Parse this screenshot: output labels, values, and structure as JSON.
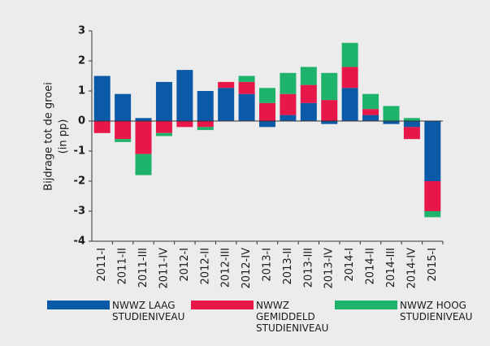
{
  "chart_data": {
    "type": "bar",
    "stacked": true,
    "ylabel": [
      "Bijdrage tot de groei",
      "(in pp)"
    ],
    "categories": [
      "2011-I",
      "2011-II",
      "2011-III",
      "2011-IV",
      "2012-I",
      "2012-II",
      "2012-III",
      "2012-IV",
      "2013-I",
      "2013-II",
      "2013-III",
      "2013-IV",
      "2014-I",
      "2014-II",
      "2014-III",
      "2014-IV",
      "2015-I"
    ],
    "series": [
      {
        "name": "NWWZ LAAG STUDIENIVEAU",
        "color": "#0b5aa8",
        "values": [
          1.5,
          0.9,
          0.1,
          1.3,
          1.7,
          1.0,
          1.1,
          0.9,
          -0.2,
          0.2,
          0.6,
          -0.1,
          1.1,
          0.2,
          -0.1,
          -0.2,
          -2.0
        ]
      },
      {
        "name": "NWWZ GEMIDDELD STUDIENIVEAU",
        "color": "#e8174a",
        "values": [
          -0.4,
          -0.6,
          -1.1,
          -0.4,
          -0.2,
          -0.2,
          0.2,
          0.4,
          0.6,
          0.7,
          0.6,
          0.7,
          0.7,
          0.2,
          0,
          -0.4,
          -1.0
        ]
      },
      {
        "name": "NWWZ HOOG STUDIENIVEAU",
        "color": "#1db36b",
        "values": [
          0,
          -0.1,
          -0.7,
          -0.1,
          0,
          -0.1,
          0,
          0.2,
          0.5,
          0.7,
          0.6,
          0.9,
          0.8,
          0.5,
          0.5,
          0.1,
          -0.2
        ]
      }
    ],
    "ylim": [
      -4,
      3
    ],
    "yticks": [
      -4,
      -3,
      -2,
      -1,
      0,
      1,
      2,
      3
    ],
    "grid": false
  }
}
